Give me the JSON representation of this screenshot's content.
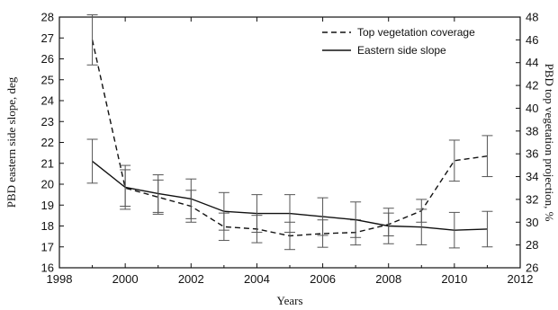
{
  "chart_data": {
    "type": "line",
    "xlabel": "Years",
    "ylabel_left": "PBD eastern side slope, deg",
    "ylabel_right": "PBD top vegetation projection, %",
    "xlim": [
      1998,
      2012
    ],
    "xticks": [
      1998,
      2000,
      2002,
      2004,
      2006,
      2008,
      2010,
      2012
    ],
    "ylim_left": [
      16,
      28
    ],
    "yticks_left": [
      16,
      17,
      18,
      19,
      20,
      21,
      22,
      23,
      24,
      25,
      26,
      27,
      28
    ],
    "ylim_right": [
      26,
      48
    ],
    "yticks_right": [
      26,
      28,
      30,
      32,
      34,
      36,
      38,
      40,
      42,
      44,
      46,
      48
    ],
    "grid": false,
    "legend_position": "top-right",
    "series": [
      {
        "name": "Top vegetation coverage",
        "axis": "right",
        "style": "dashed",
        "x": [
          1999,
          2000,
          2001,
          2002,
          2003,
          2004,
          2005,
          2006,
          2007,
          2008,
          2009,
          2010,
          2011
        ],
        "y": [
          46.0,
          33.0,
          32.2,
          31.4,
          29.6,
          29.4,
          28.8,
          29.0,
          29.1,
          29.8,
          31.0,
          35.4,
          35.8
        ],
        "err": [
          2.2,
          1.6,
          1.5,
          1.4,
          1.2,
          1.2,
          1.2,
          1.2,
          1.1,
          1.0,
          1.0,
          1.8,
          1.8
        ]
      },
      {
        "name": "Eastern side slope",
        "axis": "left",
        "style": "solid",
        "x": [
          1999,
          2000,
          2001,
          2002,
          2003,
          2004,
          2005,
          2006,
          2007,
          2008,
          2009,
          2010,
          2011
        ],
        "y": [
          21.1,
          19.85,
          19.55,
          19.3,
          18.7,
          18.6,
          18.6,
          18.45,
          18.3,
          18.0,
          17.95,
          17.8,
          17.85
        ],
        "err": [
          1.05,
          1.05,
          0.9,
          0.95,
          0.9,
          0.9,
          0.9,
          0.9,
          0.85,
          0.85,
          0.85,
          0.85,
          0.85
        ]
      }
    ]
  }
}
